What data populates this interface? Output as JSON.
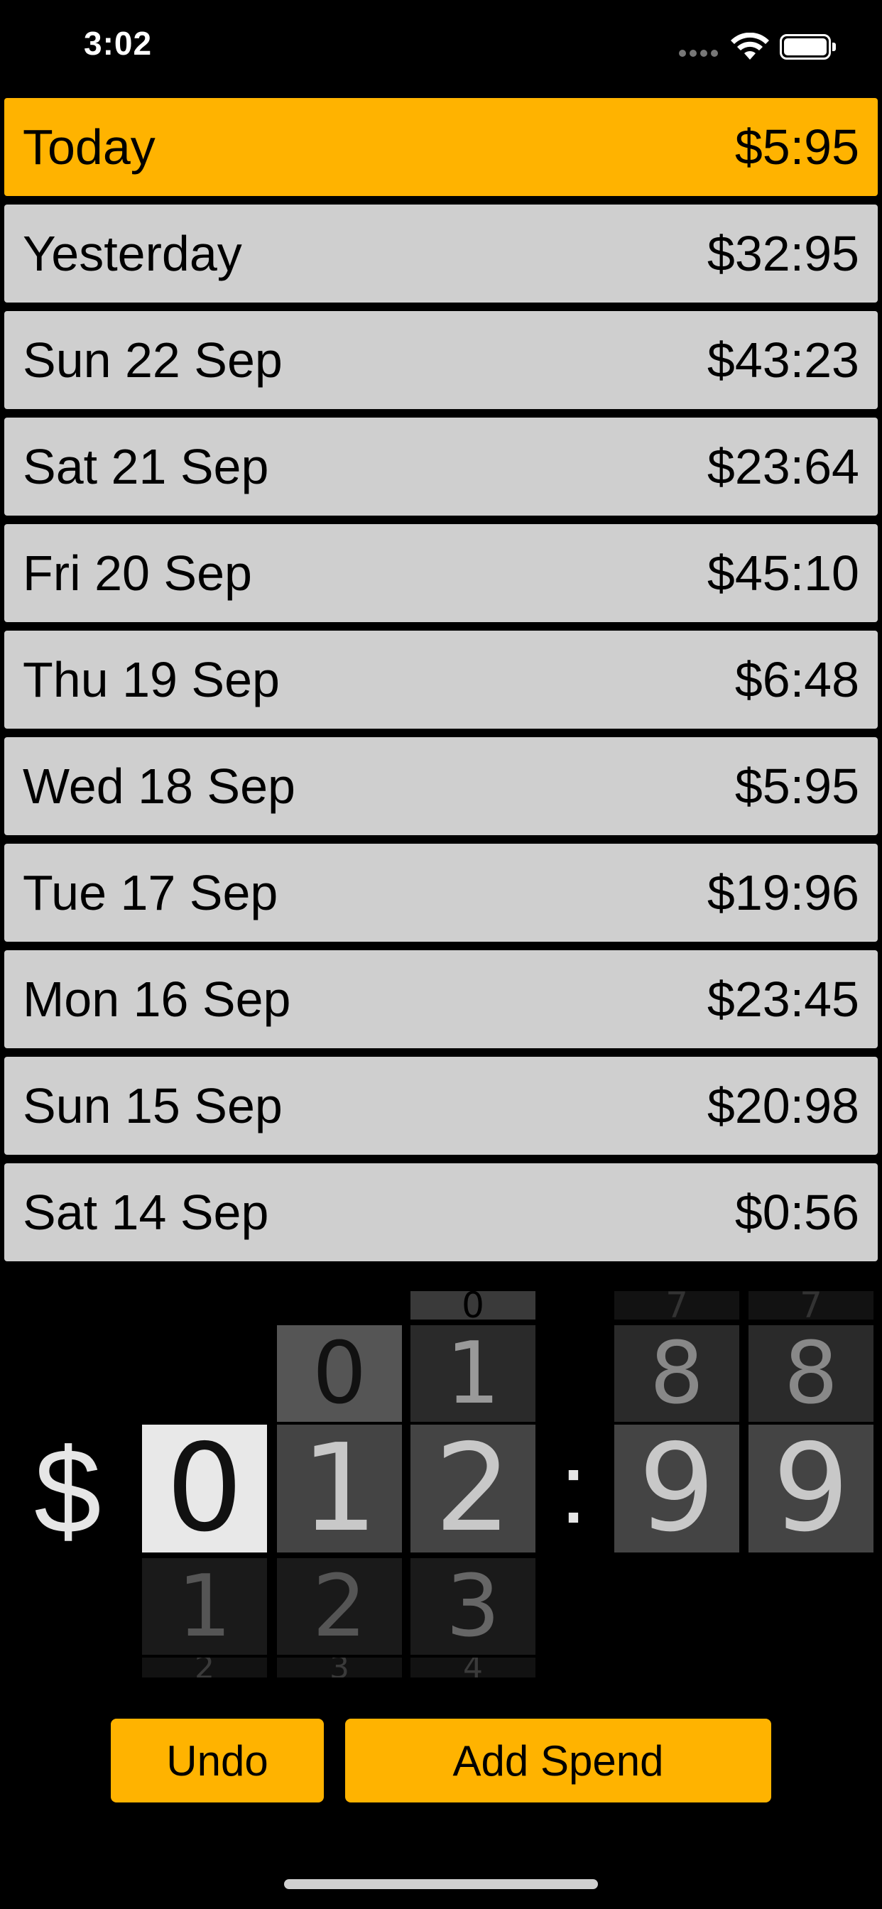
{
  "status_bar": {
    "time": "3:02"
  },
  "days": [
    {
      "label": "Today",
      "amount": "$5:95",
      "highlighted": true
    },
    {
      "label": "Yesterday",
      "amount": "$32:95"
    },
    {
      "label": "Sun 22 Sep",
      "amount": "$43:23"
    },
    {
      "label": "Sat 21 Sep",
      "amount": "$23:64"
    },
    {
      "label": "Fri 20 Sep",
      "amount": "$45:10"
    },
    {
      "label": "Thu 19 Sep",
      "amount": "$6:48"
    },
    {
      "label": "Wed 18 Sep",
      "amount": "$5:95"
    },
    {
      "label": "Tue 17 Sep",
      "amount": "$19:96"
    },
    {
      "label": "Mon 16 Sep",
      "amount": "$23:45"
    },
    {
      "label": "Sun 15 Sep",
      "amount": "$20:98"
    },
    {
      "label": "Sat 14 Sep",
      "amount": "$0:56"
    }
  ],
  "picker": {
    "currency_symbol": "$",
    "separator": ":",
    "columns": [
      {
        "selected": "0",
        "below": "1",
        "below_far": "2"
      },
      {
        "above": "0",
        "selected": "1",
        "below": "2",
        "below_far": "3"
      },
      {
        "above_far": "0",
        "above": "1",
        "selected": "2",
        "below": "3",
        "below_far": "4"
      },
      {
        "above_far": "7",
        "above": "8",
        "selected": "9"
      },
      {
        "above_far": "7",
        "above": "8",
        "selected": "9"
      }
    ]
  },
  "actions": {
    "undo_label": "Undo",
    "add_label": "Add Spend"
  },
  "colors": {
    "accent": "#ffb300",
    "row_bg": "#cfcfcf",
    "background": "#000000"
  }
}
